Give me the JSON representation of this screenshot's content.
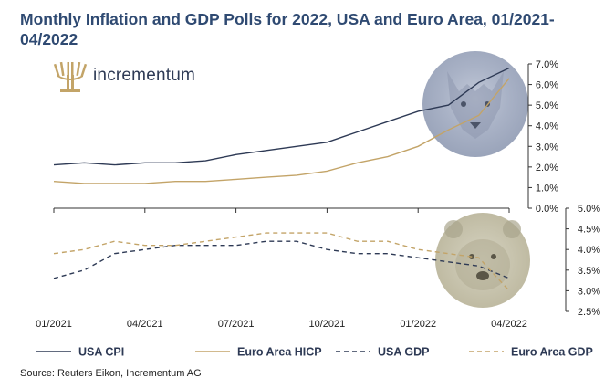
{
  "title": "Monthly Inflation and GDP Polls for 2022, USA and Euro Area, 01/2021-04/2022",
  "brand": {
    "name": "incrementum",
    "icon": "tree-logo-icon",
    "color": "#c3a468"
  },
  "source": "Source: Reuters Eikon, Incrementum AG",
  "chart_data": [
    {
      "type": "line",
      "title": "",
      "months": [
        "01/2021",
        "02/2021",
        "03/2021",
        "04/2021",
        "05/2021",
        "06/2021",
        "07/2021",
        "08/2021",
        "09/2021",
        "10/2021",
        "11/2021",
        "12/2021",
        "01/2022",
        "02/2022",
        "03/2022",
        "04/2022"
      ],
      "x_tick_labels": [
        "01/2021",
        "04/2021",
        "07/2021",
        "10/2021",
        "01/2022",
        "04/2022"
      ],
      "y_axis": {
        "side": "right",
        "ylim": [
          0,
          7
        ],
        "ticks": [
          "0.0%",
          "1.0%",
          "2.0%",
          "3.0%",
          "4.0%",
          "5.0%",
          "6.0%",
          "7.0%"
        ]
      },
      "series": [
        {
          "name": "USA CPI",
          "color": "#2e3a55",
          "dash": "solid",
          "values": [
            2.1,
            2.2,
            2.1,
            2.2,
            2.2,
            2.3,
            2.6,
            2.8,
            3.0,
            3.2,
            3.7,
            4.2,
            4.7,
            5.0,
            6.1,
            6.8
          ]
        },
        {
          "name": "Euro Area HICP",
          "color": "#c3a468",
          "dash": "solid",
          "values": [
            1.3,
            1.2,
            1.2,
            1.2,
            1.3,
            1.3,
            1.4,
            1.5,
            1.6,
            1.8,
            2.2,
            2.5,
            3.0,
            3.8,
            4.5,
            6.3
          ]
        }
      ],
      "background_image": "wolf-image"
    },
    {
      "type": "line",
      "title": "",
      "months": [
        "01/2021",
        "02/2021",
        "03/2021",
        "04/2021",
        "05/2021",
        "06/2021",
        "07/2021",
        "08/2021",
        "09/2021",
        "10/2021",
        "11/2021",
        "12/2021",
        "01/2022",
        "02/2022",
        "03/2022",
        "04/2022"
      ],
      "y_axis": {
        "side": "right",
        "ylim": [
          2.5,
          5.0
        ],
        "ticks": [
          "2.5%",
          "3.0%",
          "3.5%",
          "4.0%",
          "4.5%",
          "5.0%"
        ]
      },
      "series": [
        {
          "name": "USA GDP",
          "color": "#2e3a55",
          "dash": "dashed",
          "values": [
            3.3,
            3.5,
            3.9,
            4.0,
            4.1,
            4.1,
            4.1,
            4.2,
            4.2,
            4.0,
            3.9,
            3.9,
            3.8,
            3.7,
            3.6,
            3.3
          ]
        },
        {
          "name": "Euro Area GDP",
          "color": "#c3a468",
          "dash": "dashed",
          "values": [
            3.9,
            4.0,
            4.2,
            4.1,
            4.1,
            4.2,
            4.3,
            4.4,
            4.4,
            4.4,
            4.2,
            4.2,
            4.0,
            3.9,
            3.8,
            3.0
          ]
        }
      ],
      "background_image": "bear-image"
    }
  ],
  "legend": {
    "placement": "bottom",
    "items": [
      {
        "name": "USA CPI",
        "color": "#2e3a55",
        "dash": "solid"
      },
      {
        "name": "Euro Area HICP",
        "color": "#c3a468",
        "dash": "solid"
      },
      {
        "name": "USA GDP",
        "color": "#2e3a55",
        "dash": "dashed"
      },
      {
        "name": "Euro Area GDP",
        "color": "#c3a468",
        "dash": "dashed"
      }
    ]
  }
}
